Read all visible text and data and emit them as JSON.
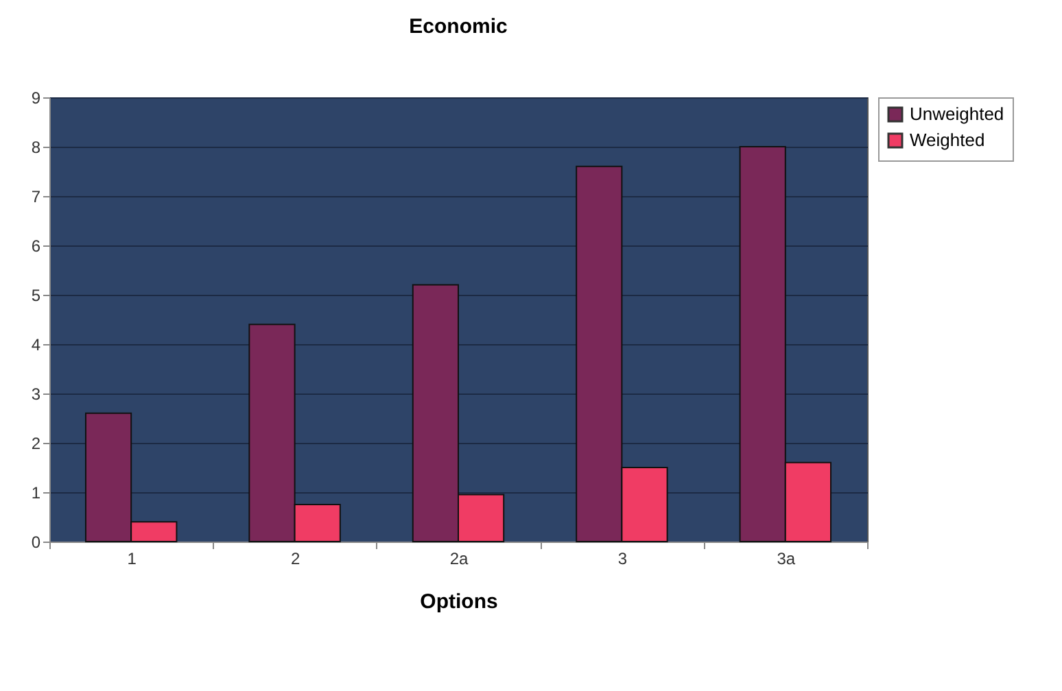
{
  "chart_data": {
    "type": "bar",
    "title": "Economic",
    "xlabel": "Options",
    "categories": [
      "1",
      "2",
      "2a",
      "3",
      "3a"
    ],
    "series": [
      {
        "name": "Unweighted",
        "color": "#7a2858",
        "values": [
          2.6,
          4.4,
          5.2,
          7.6,
          8.0
        ]
      },
      {
        "name": "Weighted",
        "color": "#f03c64",
        "values": [
          0.4,
          0.75,
          0.95,
          1.5,
          1.6
        ]
      }
    ],
    "ylim": [
      0,
      9
    ],
    "yticks": [
      0,
      1,
      2,
      3,
      4,
      5,
      6,
      7,
      8,
      9
    ],
    "grid": "y",
    "legend": "right"
  }
}
